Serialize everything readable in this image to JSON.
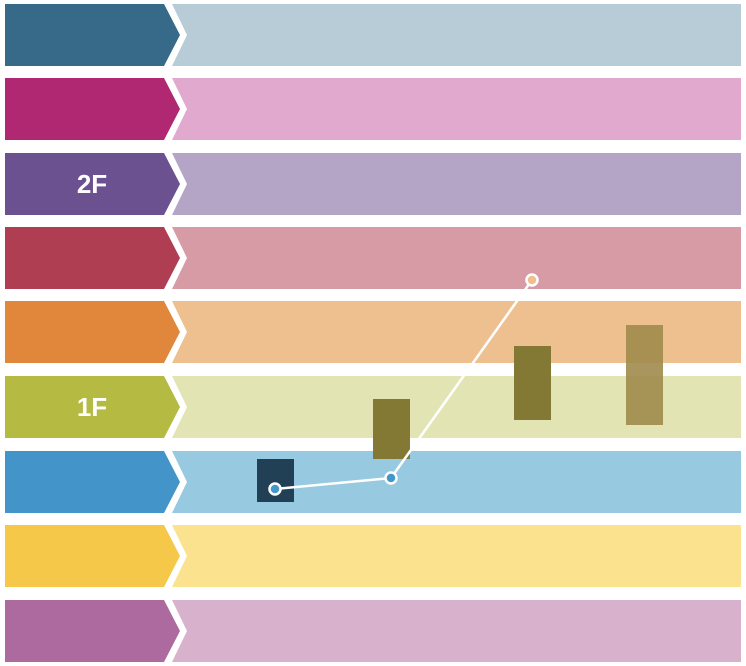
{
  "rows": [
    {
      "label": "",
      "tab_color": "#376a89",
      "band_color": "#b8ccd8"
    },
    {
      "label": "",
      "tab_color": "#b02772",
      "band_color": "#e1a9ce"
    },
    {
      "label": "2F",
      "tab_color": "#6c5191",
      "band_color": "#b4a4c6"
    },
    {
      "label": "",
      "tab_color": "#b03e52",
      "band_color": "#d79ba6"
    },
    {
      "label": "",
      "tab_color": "#e1873b",
      "band_color": "#eec090"
    },
    {
      "label": "1F",
      "tab_color": "#b5bb42",
      "band_color": "#e2e5b3"
    },
    {
      "label": "",
      "tab_color": "#4394c8",
      "band_color": "#97c9e1"
    },
    {
      "label": "",
      "tab_color": "#f5c84a",
      "band_color": "#fae28f"
    },
    {
      "label": "",
      "tab_color": "#ac6a9f",
      "band_color": "#d8b1cc"
    }
  ],
  "blocks": [
    {
      "color": "#213f55"
    },
    {
      "color": "#837834"
    },
    {
      "color": "#837834"
    },
    {
      "color": "#a08b4c",
      "opacity": 0.9
    }
  ],
  "path_points": [
    {
      "fill": "#4497c9"
    },
    {
      "fill": "#4497c9"
    },
    {
      "fill": "#eec090"
    }
  ],
  "line_color": "#ffffff"
}
